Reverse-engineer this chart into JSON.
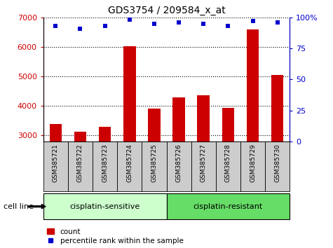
{
  "title": "GDS3754 / 209584_x_at",
  "samples": [
    "GSM385721",
    "GSM385722",
    "GSM385723",
    "GSM385724",
    "GSM385725",
    "GSM385726",
    "GSM385727",
    "GSM385728",
    "GSM385729",
    "GSM385730"
  ],
  "counts": [
    3380,
    3130,
    3300,
    6020,
    3920,
    4280,
    4360,
    3940,
    6580,
    5060
  ],
  "percentile_ranks": [
    93,
    91,
    93,
    98,
    95,
    96,
    95,
    93,
    97,
    96
  ],
  "ylim_left": [
    2800,
    7000
  ],
  "ylim_right": [
    0,
    100
  ],
  "yticks_left": [
    3000,
    4000,
    5000,
    6000,
    7000
  ],
  "yticks_right": [
    0,
    25,
    50,
    75,
    100
  ],
  "bar_color": "#cc0000",
  "scatter_color": "#0000cc",
  "bar_bottom": 2800,
  "groups": [
    {
      "label": "cisplatin-sensitive",
      "start": 0,
      "end": 5,
      "color": "#ccffcc"
    },
    {
      "label": "cisplatin-resistant",
      "start": 5,
      "end": 10,
      "color": "#66dd66"
    }
  ],
  "group_label": "cell line",
  "legend_count_label": "count",
  "legend_pct_label": "percentile rank within the sample",
  "bg_color": "#ffffff",
  "plot_bg": "#ffffff",
  "tick_color_left": "#cc0000",
  "tick_color_right": "#0000cc",
  "xlabel_color_bg": "#cccccc",
  "n_sensitive": 5
}
